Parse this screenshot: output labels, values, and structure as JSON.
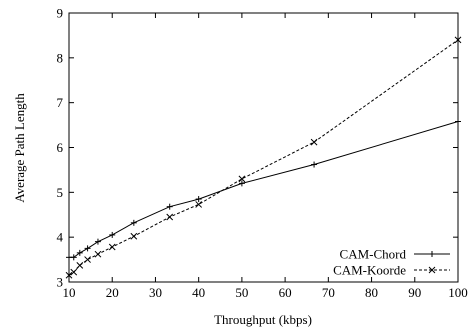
{
  "chart_data": {
    "type": "line",
    "title": "",
    "xlabel": "Throughput (kbps)",
    "ylabel": "Average Path Length",
    "xlim": [
      10,
      100
    ],
    "ylim": [
      3,
      9
    ],
    "xticks": [
      "10",
      "20",
      "30",
      "40",
      "50",
      "60",
      "70",
      "80",
      "90",
      "100"
    ],
    "yticks": [
      "3",
      "4",
      "5",
      "6",
      "7",
      "8",
      "9"
    ],
    "grid": false,
    "legend_position": "bottom-right",
    "series": [
      {
        "name": "CAM-Chord",
        "line_style": "solid",
        "marker": "plus",
        "x": [
          10,
          11.1,
          12.5,
          14.3,
          16.7,
          20,
          25,
          33.3,
          40,
          50,
          66.7,
          100
        ],
        "y": [
          3.55,
          3.55,
          3.65,
          3.75,
          3.9,
          4.05,
          4.32,
          4.68,
          4.85,
          5.2,
          5.62,
          6.58
        ]
      },
      {
        "name": "CAM-Koorde",
        "line_style": "dashed",
        "marker": "x",
        "x": [
          10,
          11.1,
          12.5,
          14.3,
          16.7,
          20,
          25,
          33.3,
          40,
          50,
          66.7,
          100
        ],
        "y": [
          3.15,
          3.22,
          3.37,
          3.5,
          3.62,
          3.78,
          4.02,
          4.45,
          4.73,
          5.3,
          6.12,
          8.4
        ]
      }
    ]
  }
}
